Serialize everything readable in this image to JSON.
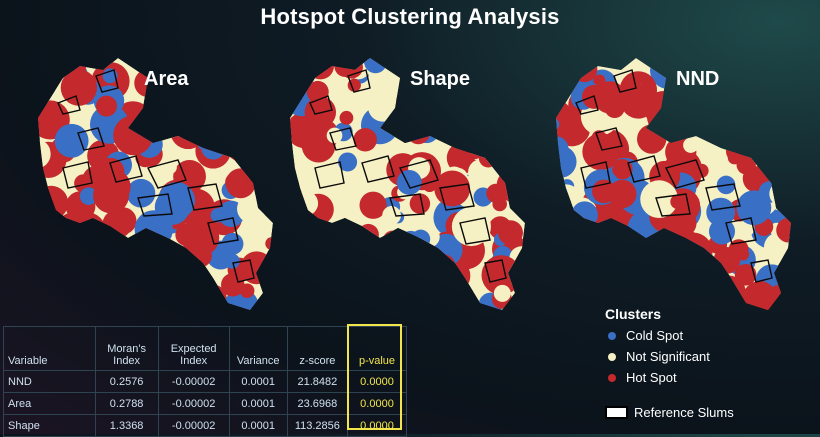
{
  "title": "Hotspot Clustering Analysis",
  "colors": {
    "cold_spot": "#3a6fc6",
    "not_significant": "#f6f1c4",
    "hot_spot": "#c3292d",
    "outline": "#0a0a0a",
    "pvalue_highlight": "#f2e64a"
  },
  "maps": [
    {
      "label": "Area"
    },
    {
      "label": "Shape"
    },
    {
      "label": "NND"
    }
  ],
  "table": {
    "headers": [
      "Variable",
      "Moran's Index",
      "Expected Index",
      "Variance",
      "z-score",
      "p-value"
    ],
    "rows": [
      [
        "NND",
        "0.2576",
        "-0.00002",
        "0.0001",
        "21.8482",
        "0.0000"
      ],
      [
        "Area",
        "0.2788",
        "-0.00002",
        "0.0001",
        "23.6968",
        "0.0000"
      ],
      [
        "Shape",
        "1.3368",
        "-0.00002",
        "0.0001",
        "113.2856",
        "0.0000"
      ]
    ]
  },
  "legend": {
    "title": "Clusters",
    "items": [
      {
        "label": "Cold Spot",
        "color": "#3a6fc6"
      },
      {
        "label": "Not Significant",
        "color": "#f6f1c4"
      },
      {
        "label": "Hot Spot",
        "color": "#c3292d"
      }
    ],
    "reference_label": "Reference Slums"
  }
}
